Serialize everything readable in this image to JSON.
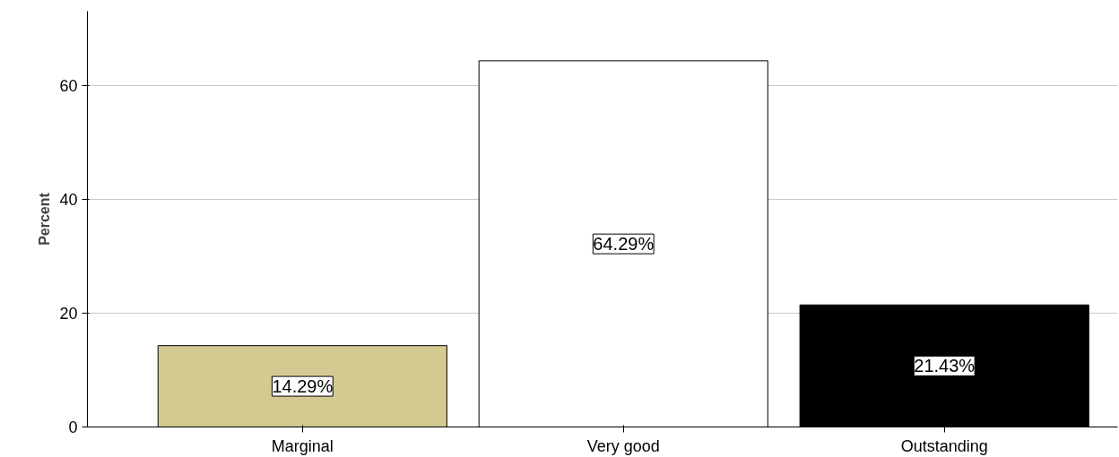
{
  "chart_data": {
    "type": "bar",
    "ylabel": "Percent",
    "categories": [
      "Marginal",
      "Very good",
      "Outstanding"
    ],
    "values": [
      14.29,
      64.29,
      21.43
    ],
    "colors": [
      "#d2ca90",
      "#ffffff",
      "#000000"
    ],
    "value_labels": [
      "14.29%",
      "64.29%",
      "21.43%"
    ],
    "ylim": [
      0,
      73
    ],
    "yticks": [
      0,
      20,
      40,
      60
    ],
    "grid": "y"
  }
}
